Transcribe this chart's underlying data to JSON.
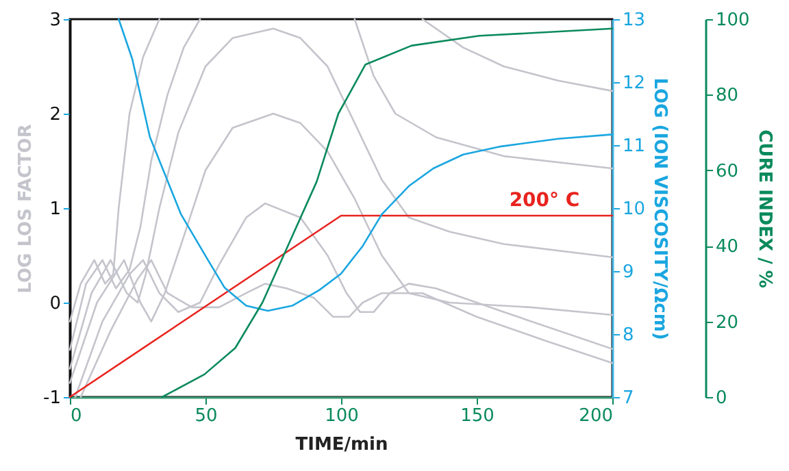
{
  "chart_data": {
    "type": "line",
    "xlabel": "TIME/min",
    "ylabel": "LOG LOS FACTOR",
    "y2label": "LOG (ION VISCOSITY/Ωcm)",
    "y3label": "CURE INDEX / %",
    "xlim": [
      0,
      200
    ],
    "xticks": [
      0,
      50,
      100,
      150,
      200
    ],
    "ylim": [
      -1,
      3
    ],
    "yticks": [
      -1,
      0,
      1,
      2,
      3
    ],
    "y2lim": [
      7,
      13
    ],
    "y2ticks": [
      7,
      8,
      9,
      10,
      11,
      12,
      13
    ],
    "y3lim": [
      0,
      100
    ],
    "y3ticks": [
      0,
      20,
      40,
      60,
      80,
      100
    ],
    "grid": false,
    "marker": "none",
    "line_style": "solid",
    "series": [
      {
        "color": "#c4c4cc",
        "x": [
          0,
          4,
          9,
          13,
          16,
          18,
          22,
          27,
          33,
          34,
          105,
          112,
          120,
          135,
          160,
          200
        ],
        "values": [
          -0.2,
          0.2,
          0.45,
          0.2,
          0.3,
          1.0,
          2.0,
          2.6,
          3.0,
          null,
          3.0,
          2.4,
          2.0,
          1.75,
          1.55,
          1.42
        ]
      },
      {
        "color": "#c4c4cc",
        "x": [
          0,
          6,
          12,
          17,
          22,
          26,
          30,
          36,
          42,
          48,
          49,
          130,
          145,
          160,
          180,
          200
        ],
        "values": [
          -0.5,
          0.2,
          0.45,
          0.15,
          0.35,
          0.8,
          1.5,
          2.2,
          2.7,
          3.0,
          null,
          3.0,
          2.7,
          2.5,
          2.35,
          2.24
        ]
      },
      {
        "color": "#c4c4cc",
        "x": [
          0,
          8,
          15,
          21,
          25,
          28,
          33,
          40,
          50,
          60,
          75,
          85,
          95,
          105,
          115,
          125,
          140,
          160,
          200
        ],
        "values": [
          -0.7,
          0.1,
          0.45,
          0.1,
          0.0,
          0.3,
          1.0,
          1.8,
          2.5,
          2.8,
          2.9,
          2.8,
          2.5,
          1.9,
          1.3,
          0.9,
          0.75,
          0.62,
          0.48
        ]
      },
      {
        "color": "#c4c4cc",
        "x": [
          0,
          10,
          20,
          26,
          30,
          35,
          42,
          50,
          60,
          75,
          85,
          95,
          105,
          115,
          125,
          140,
          170,
          200
        ],
        "values": [
          -0.85,
          0.0,
          0.45,
          0.0,
          -0.2,
          0.1,
          0.7,
          1.4,
          1.85,
          2.0,
          1.9,
          1.6,
          1.1,
          0.5,
          0.1,
          0.0,
          -0.05,
          -0.13
        ]
      },
      {
        "color": "#c4c4cc",
        "x": [
          2,
          12,
          22,
          27,
          33,
          40,
          48,
          55,
          65,
          72,
          85,
          95,
          102,
          107,
          112,
          118,
          125,
          135,
          160,
          200
        ],
        "values": [
          -1,
          -0.2,
          0.3,
          0.45,
          0.1,
          -0.1,
          0.0,
          0.4,
          0.9,
          1.05,
          0.9,
          0.5,
          0.1,
          -0.1,
          -0.1,
          0.1,
          0.2,
          0.15,
          -0.1,
          -0.49
        ]
      },
      {
        "color": "#c4c4cc",
        "x": [
          4,
          15,
          25,
          30,
          36,
          45,
          55,
          65,
          72,
          80,
          90,
          97,
          103,
          108,
          115,
          130,
          150,
          175,
          200
        ],
        "values": [
          -1,
          -0.3,
          0.25,
          0.45,
          0.1,
          -0.05,
          -0.05,
          0.1,
          0.2,
          0.15,
          0.05,
          -0.15,
          -0.15,
          0.0,
          0.1,
          0.1,
          -0.15,
          -0.4,
          -0.64
        ]
      },
      {
        "name": "200° C",
        "color": "#e8231e",
        "x": [
          0,
          100,
          200
        ],
        "values": [
          -1,
          0.92,
          0.92
        ]
      },
      {
        "axis": "y2",
        "color": "#1aa6e0",
        "x": [
          18,
          23,
          29.5,
          41,
          51,
          57,
          65,
          73,
          82,
          92,
          100,
          108,
          115,
          125,
          134,
          145,
          159,
          180,
          200
        ],
        "values": [
          13,
          12.37,
          11.13,
          9.9,
          9.17,
          8.74,
          8.45,
          8.37,
          8.45,
          8.7,
          8.96,
          9.4,
          9.9,
          10.35,
          10.63,
          10.85,
          10.98,
          11.1,
          11.17
        ]
      },
      {
        "axis": "y3",
        "color": "#0a8a5c",
        "x": [
          34,
          49.6,
          61,
          71,
          81,
          91,
          99,
          109,
          126,
          151,
          200
        ],
        "values": [
          0,
          6,
          13,
          25,
          41,
          57,
          75,
          88,
          93,
          95.6,
          97.5
        ]
      }
    ]
  }
}
